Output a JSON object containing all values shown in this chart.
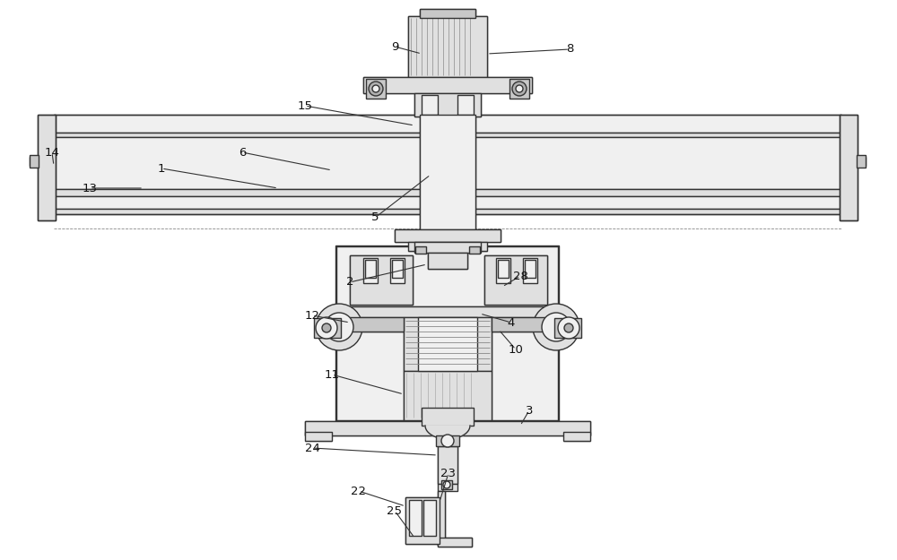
{
  "bg_color": "#ffffff",
  "line_color": "#333333",
  "dash_color": "#666666",
  "fill_light": "#f0f0f0",
  "fill_mid": "#e0e0e0",
  "fill_dark": "#c8c8c8",
  "fill_darker": "#b0b0b0",
  "label_color": "#111111",
  "label_fontsize": 9.5,
  "leader_lw": 0.8,
  "main_lw": 1.0,
  "thick_lw": 1.6
}
